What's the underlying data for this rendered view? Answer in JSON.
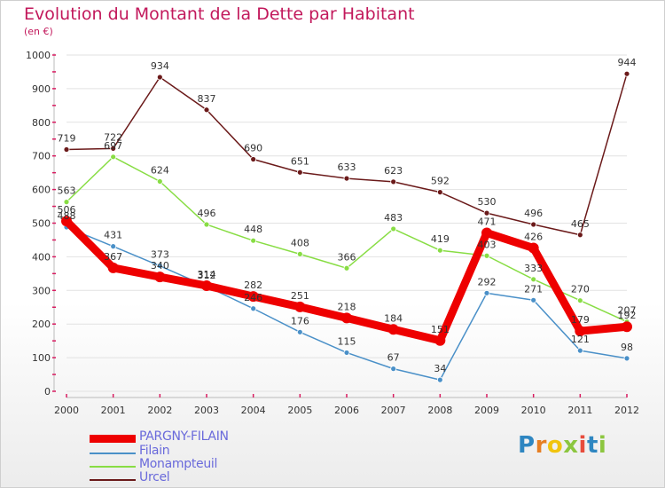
{
  "header": {
    "title": "Evolution du Montant de la Dette par Habitant",
    "subtitle": "(en €)"
  },
  "colors": {
    "title": "#c2185b",
    "axis_ticks": "#d81b60",
    "grid": "#e2e2e2"
  },
  "chart_data": {
    "type": "line",
    "title": "Evolution du Montant de la Dette par Habitant",
    "subtitle": "(en €)",
    "x": [
      "2000",
      "2001",
      "2002",
      "2003",
      "2004",
      "2005",
      "2006",
      "2007",
      "2008",
      "2009",
      "2010",
      "2011",
      "2012"
    ],
    "ylim": [
      0,
      1000
    ],
    "yticks": [
      0,
      100,
      200,
      300,
      400,
      500,
      600,
      700,
      800,
      900,
      1000
    ],
    "grid": "horizontal",
    "legend_placement": "bottom-left",
    "series": [
      {
        "name": "PARGNY-FILAIN",
        "color": "#ee0000",
        "values": [
          506,
          367,
          340,
          314,
          282,
          251,
          218,
          184,
          151,
          471,
          426,
          179,
          192
        ]
      },
      {
        "name": "Filain",
        "color": "#4a90c8",
        "values": [
          488,
          431,
          373,
          312,
          246,
          176,
          115,
          67,
          34,
          292,
          271,
          121,
          98
        ]
      },
      {
        "name": "Monampteuil",
        "color": "#88dd44",
        "values": [
          563,
          697,
          624,
          496,
          448,
          408,
          366,
          483,
          419,
          403,
          333,
          270,
          207
        ]
      },
      {
        "name": "Urcel",
        "color": "#6b1a1a",
        "values": [
          719,
          722,
          934,
          837,
          690,
          651,
          633,
          623,
          592,
          530,
          496,
          465,
          944
        ]
      }
    ]
  },
  "logo": {
    "letters": [
      {
        "ch": "P",
        "color": "#2e86c1"
      },
      {
        "ch": "r",
        "color": "#e67e22"
      },
      {
        "ch": "o",
        "color": "#f1c40f"
      },
      {
        "ch": "x",
        "color": "#8cc63f"
      },
      {
        "ch": "i",
        "color": "#e74c3c"
      },
      {
        "ch": "t",
        "color": "#2e86c1"
      },
      {
        "ch": "i",
        "color": "#8cc63f"
      }
    ]
  }
}
